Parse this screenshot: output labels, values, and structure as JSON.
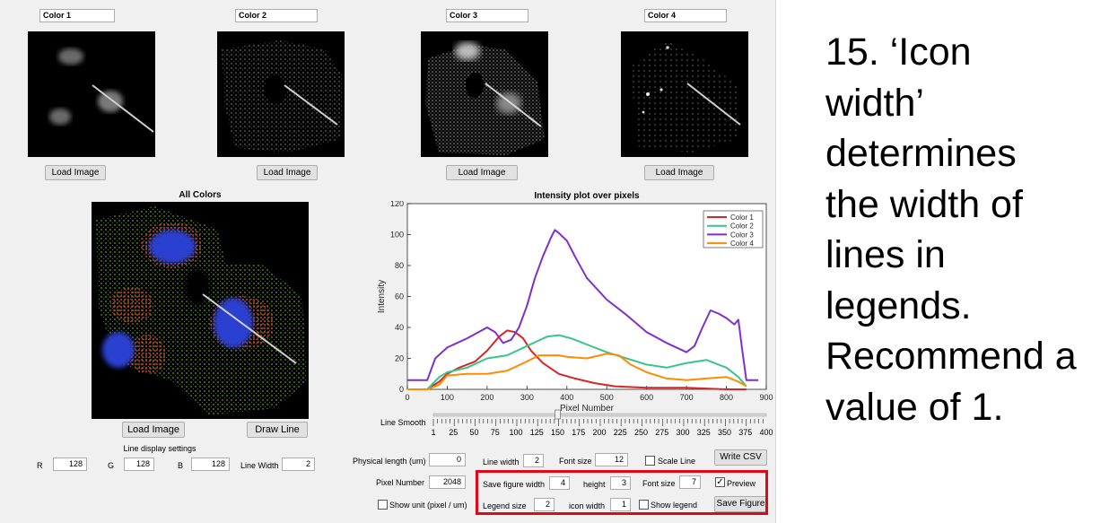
{
  "panels": [
    {
      "name": "Color 1",
      "load_label": "Load Image"
    },
    {
      "name": "Color 2",
      "load_label": "Load Image"
    },
    {
      "name": "Color 3",
      "load_label": "Load Image"
    },
    {
      "name": "Color 4",
      "load_label": "Load Image"
    }
  ],
  "composite": {
    "title": "All Colors",
    "load_label": "Load Image",
    "draw_line_label": "Draw Line",
    "line_settings_title": "Line display settings",
    "r_label": "R",
    "r_value": "128",
    "g_label": "G",
    "g_value": "128",
    "b_label": "B",
    "b_value": "128",
    "line_width_label": "Line Width",
    "line_width_value": "2"
  },
  "plot_controls": {
    "line_smooth_label": "Line Smooth",
    "slider_ticks": [
      "1",
      "25",
      "50",
      "75",
      "100",
      "125",
      "150",
      "175",
      "200",
      "225",
      "250",
      "275",
      "300",
      "325",
      "350",
      "375",
      "400"
    ],
    "slider_value": 150,
    "physical_length_label": "Physical length (um)",
    "physical_length_value": "0",
    "pixel_number_label": "Pixel Number",
    "pixel_number_value": "2048",
    "show_unit_label": "Show unit (pixel / um)",
    "line_width_label": "Line width",
    "line_width_value": "2",
    "font_size_label": "Font size",
    "font_size_value": "12",
    "scale_line_label": "Scale Line",
    "write_csv_label": "Write CSV",
    "save_width_label": "Save figure width",
    "save_width_value": "4",
    "height_label": "height",
    "height_value": "3",
    "legend_font_label": "Font size",
    "legend_font_value": "7",
    "preview_label": "Preview",
    "preview_mark": "✓",
    "legend_size_label": "Legend size",
    "legend_size_value": "2",
    "icon_width_label": "icon width",
    "icon_width_value": "1",
    "show_legend_label": "Show legend",
    "save_figure_label": "Save Figure"
  },
  "chart_data": {
    "type": "line",
    "title": "Intensity plot over pixels",
    "xlabel": "Pixel Number",
    "ylabel": "Intensity",
    "xlim": [
      0,
      900
    ],
    "ylim": [
      0,
      120
    ],
    "xticks": [
      0,
      100,
      200,
      300,
      400,
      500,
      600,
      700,
      800,
      900
    ],
    "yticks": [
      0,
      20,
      40,
      60,
      80,
      100,
      120
    ],
    "legend_position": "top-right",
    "series": [
      {
        "name": "Color 1",
        "color": "#d62728",
        "x": [
          0,
          50,
          80,
          100,
          130,
          170,
          200,
          230,
          250,
          270,
          290,
          310,
          340,
          380,
          420,
          470,
          520,
          600,
          700,
          800,
          850
        ],
        "y": [
          0,
          0,
          5,
          10,
          14,
          18,
          25,
          34,
          38,
          37,
          33,
          25,
          17,
          10,
          7,
          4,
          2,
          1,
          1,
          0,
          0
        ]
      },
      {
        "name": "Color 2",
        "color": "#3ac48a",
        "x": [
          0,
          50,
          80,
          100,
          150,
          200,
          250,
          300,
          350,
          380,
          410,
          450,
          500,
          550,
          600,
          650,
          700,
          750,
          780,
          800,
          830,
          850
        ],
        "y": [
          0,
          0,
          8,
          11,
          14,
          20,
          22,
          28,
          34,
          35,
          33,
          29,
          24,
          20,
          16,
          14,
          17,
          19,
          16,
          14,
          8,
          2
        ],
        "y_note": null
      },
      {
        "name": "Color 3",
        "color": "#7e2fcc",
        "x": [
          0,
          50,
          70,
          100,
          150,
          200,
          220,
          240,
          260,
          280,
          300,
          320,
          340,
          360,
          370,
          380,
          400,
          420,
          450,
          500,
          550,
          600,
          650,
          700,
          720,
          740,
          760,
          780,
          800,
          820,
          830,
          840,
          850,
          880
        ],
        "y": [
          6,
          6,
          20,
          27,
          33,
          40,
          37,
          30,
          32,
          40,
          54,
          72,
          86,
          98,
          103,
          101,
          96,
          86,
          72,
          58,
          48,
          37,
          30,
          24,
          28,
          40,
          51,
          49,
          46,
          42,
          45,
          25,
          6,
          6
        ]
      },
      {
        "name": "Color 4",
        "color": "#ff8c00",
        "x": [
          0,
          50,
          80,
          100,
          150,
          200,
          250,
          300,
          330,
          350,
          380,
          400,
          450,
          500,
          530,
          560,
          600,
          650,
          700,
          750,
          800,
          830,
          850
        ],
        "y": [
          0,
          0,
          3,
          9,
          10,
          10,
          12,
          18,
          22,
          22,
          22,
          21,
          20,
          23,
          22,
          16,
          11,
          7,
          6,
          7,
          8,
          5,
          2
        ]
      }
    ]
  },
  "side_text": [
    "15. ‘Icon",
    "width’",
    "determines",
    "the width of",
    "lines in",
    "legends.",
    "Recommend a",
    "value of 1."
  ],
  "colors": {
    "highlight_border": "#e30613",
    "window_bg": "#f0f0f0"
  }
}
